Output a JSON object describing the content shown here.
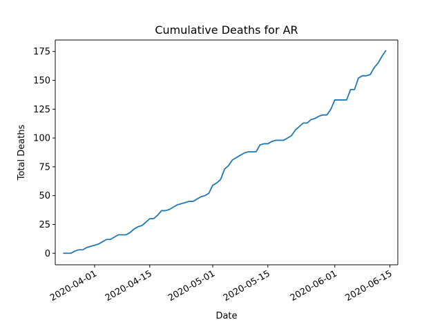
{
  "chart_data": {
    "type": "line",
    "title": "Cumulative Deaths for AR",
    "xlabel": "Date",
    "ylabel": "Total Deaths",
    "x_axis_type": "date",
    "xlim": [
      "2020-03-22",
      "2020-06-17"
    ],
    "ylim": [
      -10,
      185
    ],
    "x_ticks": [
      "2020-04-01",
      "2020-04-15",
      "2020-05-01",
      "2020-05-15",
      "2020-06-01",
      "2020-06-15"
    ],
    "y_ticks": [
      0,
      25,
      50,
      75,
      100,
      125,
      150,
      175
    ],
    "grid": false,
    "colors": {
      "line": "#1f77b4"
    },
    "series": [
      {
        "x": [
          "2020-03-24",
          "2020-03-25",
          "2020-03-26",
          "2020-03-27",
          "2020-03-28",
          "2020-03-29",
          "2020-03-30",
          "2020-03-31",
          "2020-04-01",
          "2020-04-02",
          "2020-04-03",
          "2020-04-04",
          "2020-04-05",
          "2020-04-06",
          "2020-04-07",
          "2020-04-08",
          "2020-04-09",
          "2020-04-10",
          "2020-04-11",
          "2020-04-12",
          "2020-04-13",
          "2020-04-14",
          "2020-04-15",
          "2020-04-16",
          "2020-04-17",
          "2020-04-18",
          "2020-04-19",
          "2020-04-20",
          "2020-04-21",
          "2020-04-22",
          "2020-04-23",
          "2020-04-24",
          "2020-04-25",
          "2020-04-26",
          "2020-04-27",
          "2020-04-28",
          "2020-04-29",
          "2020-04-30",
          "2020-05-01",
          "2020-05-02",
          "2020-05-03",
          "2020-05-04",
          "2020-05-05",
          "2020-05-06",
          "2020-05-07",
          "2020-05-08",
          "2020-05-09",
          "2020-05-10",
          "2020-05-11",
          "2020-05-12",
          "2020-05-13",
          "2020-05-14",
          "2020-05-15",
          "2020-05-16",
          "2020-05-17",
          "2020-05-18",
          "2020-05-19",
          "2020-05-20",
          "2020-05-21",
          "2020-05-22",
          "2020-05-23",
          "2020-05-24",
          "2020-05-25",
          "2020-05-26",
          "2020-05-27",
          "2020-05-28",
          "2020-05-29",
          "2020-05-30",
          "2020-05-31",
          "2020-06-01",
          "2020-06-02",
          "2020-06-03",
          "2020-06-04",
          "2020-06-05",
          "2020-06-06",
          "2020-06-07",
          "2020-06-08",
          "2020-06-09",
          "2020-06-10",
          "2020-06-11",
          "2020-06-12",
          "2020-06-13",
          "2020-06-14"
        ],
        "values": [
          0,
          0,
          0,
          2,
          3,
          3,
          5,
          6,
          7,
          8,
          10,
          12,
          12,
          14,
          16,
          16,
          16,
          18,
          21,
          23,
          24,
          27,
          30,
          30,
          33,
          37,
          37,
          38,
          40,
          42,
          43,
          44,
          45,
          45,
          47,
          49,
          50,
          52,
          59,
          61,
          64,
          73,
          76,
          81,
          83,
          85,
          87,
          88,
          88,
          88,
          94,
          95,
          95,
          97,
          98,
          98,
          98,
          100,
          102,
          107,
          110,
          113,
          113,
          116,
          117,
          119,
          120,
          120,
          125,
          133,
          133,
          133,
          133,
          142,
          142,
          152,
          154,
          154,
          155,
          161,
          165,
          171,
          176
        ]
      }
    ]
  }
}
